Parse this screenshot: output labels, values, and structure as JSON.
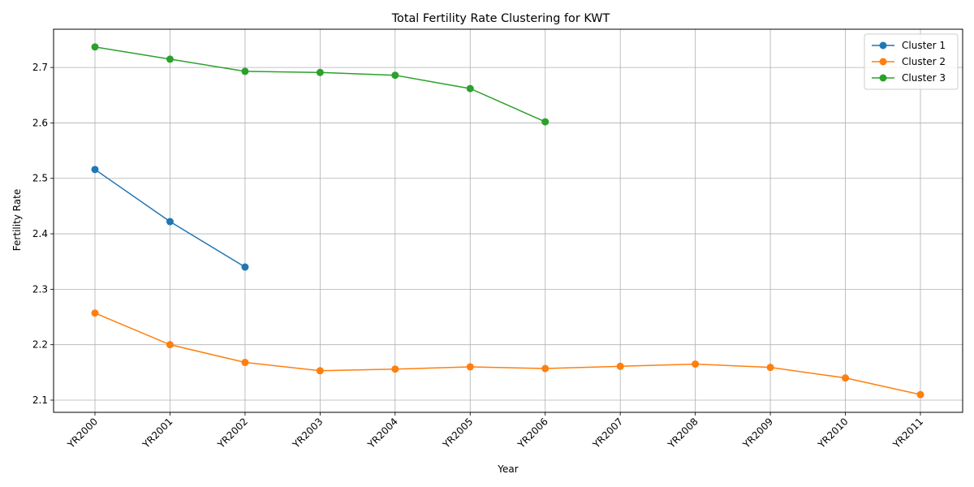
{
  "chart_data": {
    "type": "line",
    "title": "Total Fertility Rate Clustering for KWT",
    "xlabel": "Year",
    "ylabel": "Fertility Rate",
    "categories": [
      "YR2000",
      "YR2001",
      "YR2002",
      "YR2003",
      "YR2004",
      "YR2005",
      "YR2006",
      "YR2007",
      "YR2008",
      "YR2009",
      "YR2010",
      "YR2011"
    ],
    "ylim": [
      2.078,
      2.769
    ],
    "yticks": [
      "2.1",
      "2.2",
      "2.3",
      "2.4",
      "2.5",
      "2.6",
      "2.7"
    ],
    "grid": true,
    "legend_position": "top-right",
    "series": [
      {
        "name": "Cluster 1",
        "color": "#1f77b4",
        "values": [
          2.516,
          2.422,
          2.34,
          null,
          null,
          null,
          null,
          null,
          null,
          null,
          null,
          null
        ]
      },
      {
        "name": "Cluster 2",
        "color": "#ff7f0e",
        "values": [
          2.257,
          2.2,
          2.168,
          2.153,
          2.156,
          2.16,
          2.157,
          2.161,
          2.165,
          2.159,
          2.14,
          2.11
        ]
      },
      {
        "name": "Cluster 3",
        "color": "#2ca02c",
        "values": [
          2.737,
          2.715,
          2.693,
          2.691,
          2.686,
          2.662,
          2.602,
          null,
          null,
          null,
          null,
          null
        ]
      }
    ]
  }
}
